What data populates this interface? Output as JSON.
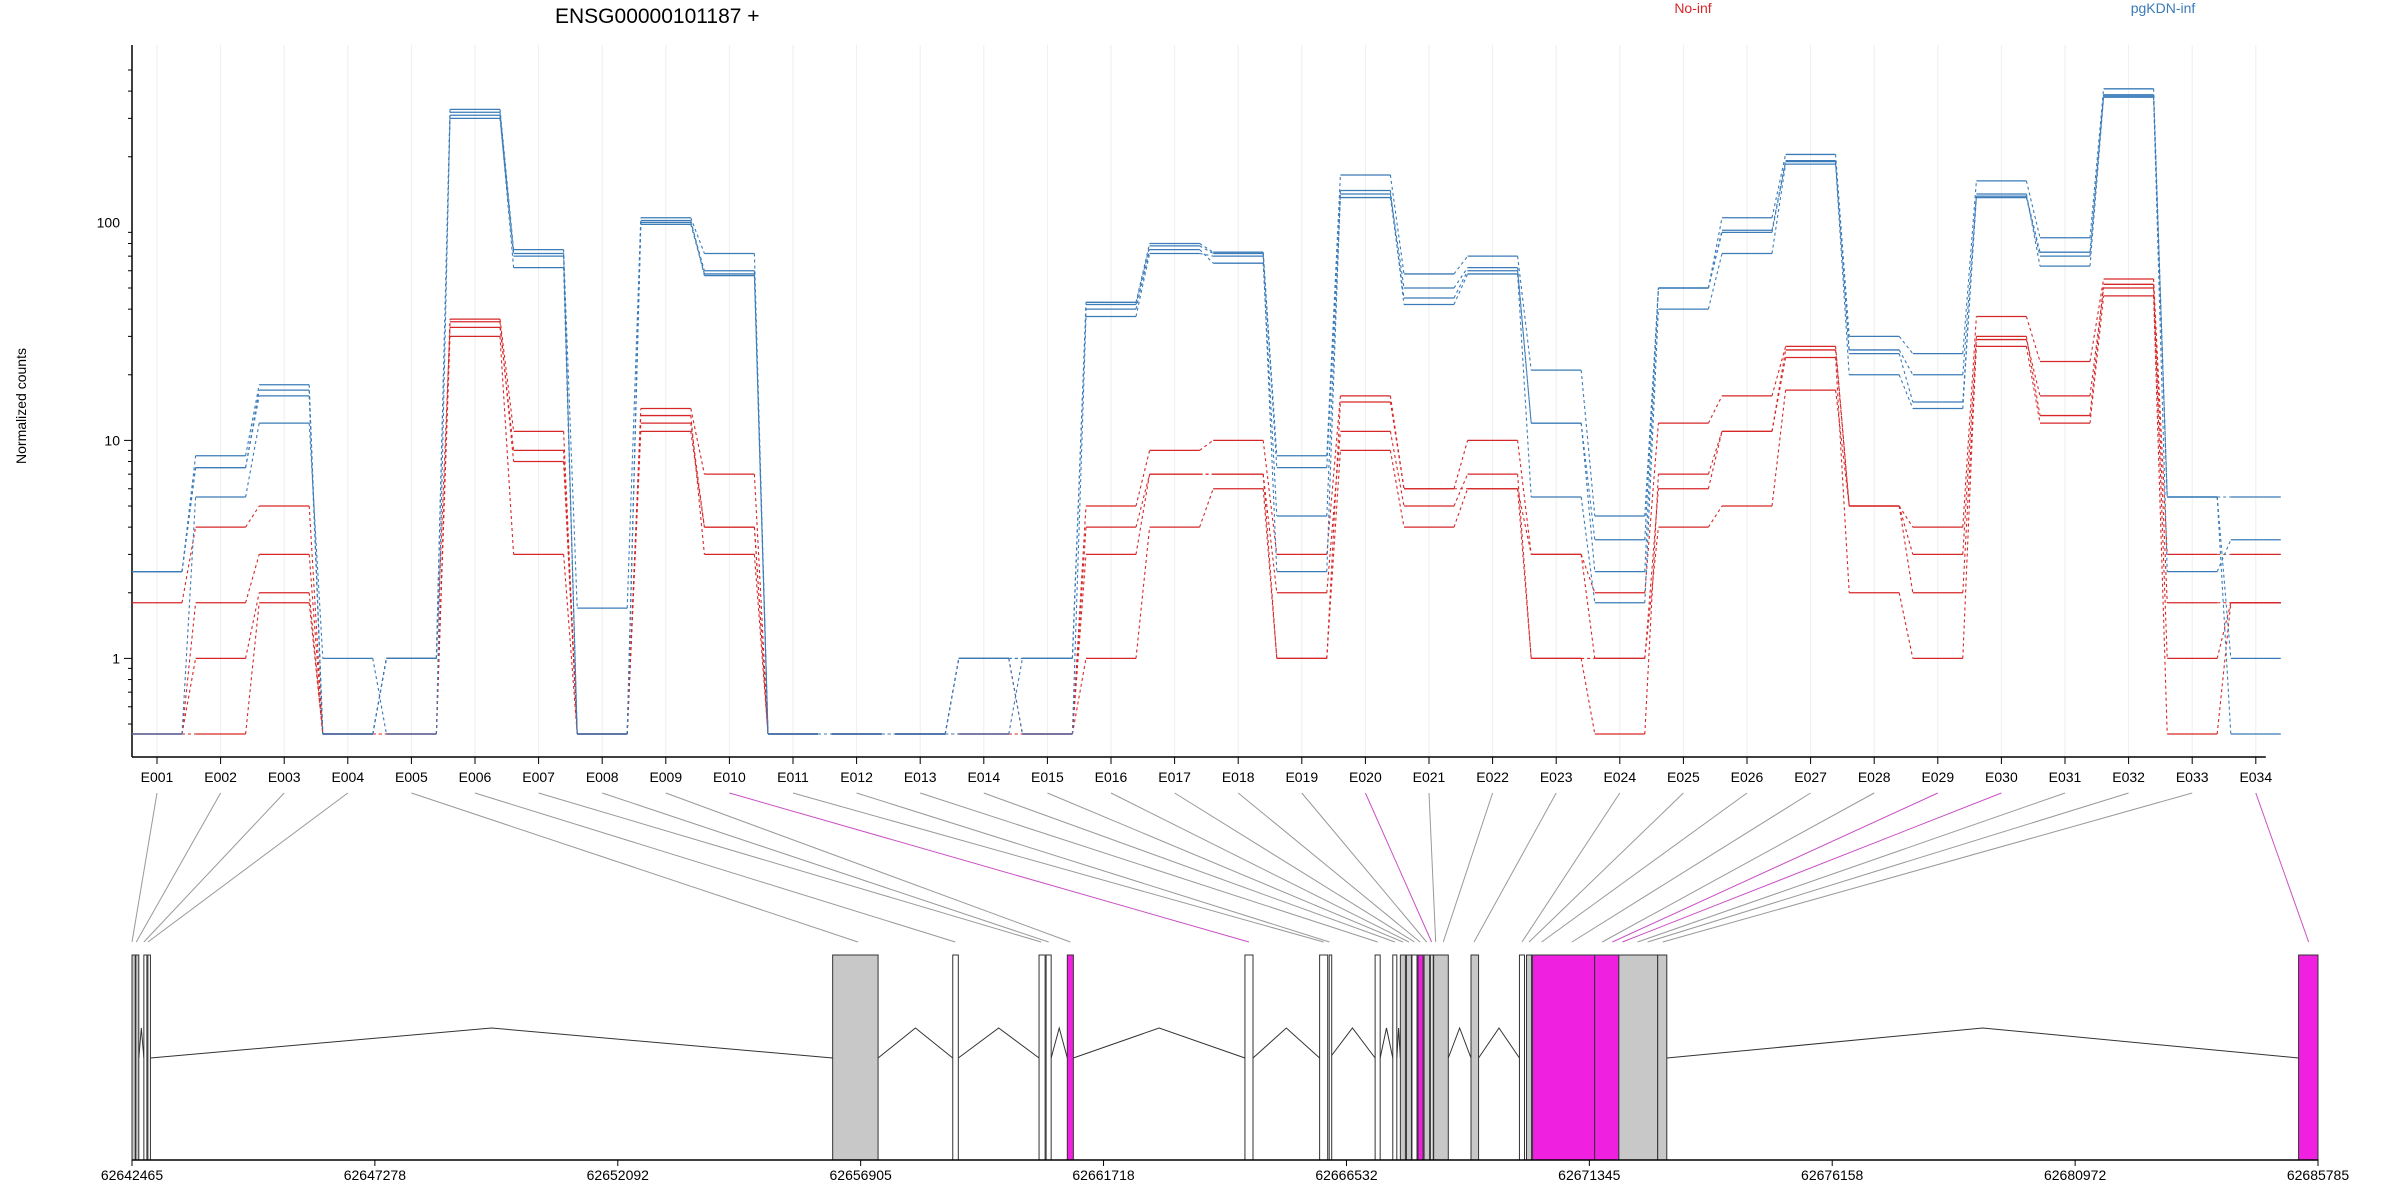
{
  "chart_data": {
    "type": "line",
    "title": "ENSG00000101187 +",
    "ylabel": "Normalized counts",
    "xlabel": "",
    "y_scale": "log",
    "yticks": [
      1,
      10,
      100
    ],
    "ytick_labels": [
      "1",
      "10",
      "100"
    ],
    "ylim": [
      0.45,
      500
    ],
    "grid": "vertical lines at exon bins",
    "legend_placement": "top",
    "legend": [
      {
        "label": "No-inf",
        "color": "#d62728"
      },
      {
        "label": "pgKDN-inf",
        "color": "#3a7bb8"
      }
    ],
    "categories": [
      "E001",
      "E002",
      "E003",
      "E004",
      "E005",
      "E006",
      "E007",
      "E008",
      "E009",
      "E010",
      "E011",
      "E012",
      "E013",
      "E014",
      "E015",
      "E016",
      "E017",
      "E018",
      "E019",
      "E020",
      "E021",
      "E022",
      "E023",
      "E024",
      "E025",
      "E026",
      "E027",
      "E028",
      "E029",
      "E030",
      "E031",
      "E032",
      "E033",
      "E034"
    ],
    "series": [
      {
        "group": "No-inf",
        "color": "#d62728",
        "values": [
          1.8,
          4,
          5,
          0.45,
          0.45,
          36,
          11,
          0.45,
          14,
          7,
          0.45,
          0.45,
          0.45,
          0.45,
          0.45,
          5,
          9,
          10,
          3,
          16,
          6,
          10,
          3,
          2,
          12,
          16,
          27,
          5,
          4,
          37,
          23,
          55,
          3,
          3
        ]
      },
      {
        "group": "No-inf",
        "color": "#d62728",
        "values": [
          0.45,
          1,
          2,
          0.45,
          1,
          33,
          9,
          0.45,
          12,
          4,
          0.45,
          0.45,
          0.45,
          1,
          0.45,
          4,
          7,
          7,
          2,
          11,
          5,
          7,
          1,
          0.45,
          7,
          11,
          24,
          2,
          1,
          29,
          16,
          50,
          1,
          1.8
        ]
      },
      {
        "group": "No-inf",
        "color": "#d62728",
        "values": [
          0.45,
          1.8,
          3,
          0.45,
          0.45,
          30,
          3,
          0.45,
          11,
          4,
          0.45,
          0.45,
          0.45,
          0.45,
          0.45,
          1,
          4,
          6,
          1,
          9,
          4,
          6,
          1,
          1,
          4,
          5,
          17,
          5,
          2,
          27,
          12,
          46,
          0.45,
          1.8
        ]
      },
      {
        "group": "No-inf",
        "color": "#d62728",
        "values": [
          0.45,
          0.45,
          1.8,
          0.45,
          0.45,
          35,
          8,
          0.45,
          13,
          3,
          0.45,
          0.45,
          0.45,
          0.45,
          0.45,
          3,
          7,
          7,
          1,
          15,
          6,
          6,
          3,
          1,
          6,
          11,
          26,
          5,
          3,
          30,
          13,
          52,
          1.8,
          1.8
        ]
      },
      {
        "group": "pgKDN-inf",
        "color": "#3a7bb8",
        "values": [
          2.5,
          8.5,
          18,
          0.45,
          1,
          330,
          75,
          1.7,
          105,
          72,
          0.45,
          0.45,
          0.45,
          1,
          1,
          43,
          80,
          73,
          8.5,
          165,
          58,
          70,
          21,
          4.5,
          50,
          105,
          205,
          30,
          25,
          155,
          85,
          410,
          5.5,
          5.5
        ]
      },
      {
        "group": "pgKDN-inf",
        "color": "#3a7bb8",
        "values": [
          2.5,
          7.5,
          16,
          0.45,
          1,
          300,
          70,
          0.45,
          100,
          60,
          0.45,
          0.45,
          0.45,
          0.45,
          1,
          40,
          75,
          65,
          4.5,
          130,
          45,
          60,
          12,
          3.5,
          50,
          90,
          190,
          25,
          15,
          130,
          70,
          380,
          2.5,
          3.5
        ]
      },
      {
        "group": "pgKDN-inf",
        "color": "#3a7bb8",
        "values": [
          0.45,
          5.5,
          12,
          1,
          0.45,
          310,
          62,
          0.45,
          98,
          58,
          0.45,
          0.45,
          0.45,
          1,
          0.45,
          37,
          72,
          70,
          2.5,
          140,
          42,
          58,
          5.5,
          1.8,
          40,
          72,
          185,
          20,
          14,
          135,
          63,
          375,
          5.5,
          1
        ]
      },
      {
        "group": "pgKDN-inf",
        "color": "#3a7bb8",
        "values": [
          2.5,
          7.5,
          17,
          0.45,
          1,
          320,
          72,
          0.45,
          102,
          57,
          0.45,
          0.45,
          0.45,
          1,
          1,
          42,
          78,
          72,
          7.5,
          135,
          50,
          62,
          12,
          2.5,
          50,
          92,
          192,
          26,
          20,
          132,
          73,
          385,
          5.5,
          0.45
        ]
      }
    ],
    "gene_model": {
      "coordinate_ticks": [
        "62642465",
        "62647278",
        "62652092",
        "62656905",
        "62661718",
        "62666532",
        "62671345",
        "62676158",
        "62680972",
        "62685785"
      ],
      "coordinate_tick_values": [
        62642465,
        62647278,
        62652092,
        62656905,
        62661718,
        62666532,
        62671345,
        62676158,
        62680972,
        62685785
      ],
      "range": [
        62642465,
        62685785
      ],
      "exons": [
        {
          "start": 62642465,
          "end": 62642530,
          "color": "#c8c8c8",
          "bin": "E001"
        },
        {
          "start": 62642540,
          "end": 62642600,
          "color": "#c8c8c8",
          "bin": "E002"
        },
        {
          "start": 62642700,
          "end": 62642760,
          "color": "#ffffff",
          "bin": "E003"
        },
        {
          "start": 62642780,
          "end": 62642830,
          "color": "#ffffff",
          "bin": "E004"
        },
        {
          "start": 62656350,
          "end": 62657250,
          "color": "#c8c8c8",
          "bin": "E005"
        },
        {
          "start": 62658730,
          "end": 62658840,
          "color": "#ffffff",
          "bin": "E006"
        },
        {
          "start": 62660440,
          "end": 62660560,
          "color": "#ffffff",
          "bin": "E007"
        },
        {
          "start": 62660580,
          "end": 62660680,
          "color": "#ffffff",
          "bin": "E008"
        },
        {
          "start": 62661000,
          "end": 62661120,
          "color": "#f020e0",
          "bin": "E009"
        },
        {
          "start": 62664520,
          "end": 62664680,
          "color": "#ffffff",
          "bin": "E010"
        },
        {
          "start": 62666000,
          "end": 62666160,
          "color": "#ffffff",
          "bin": "E011"
        },
        {
          "start": 62666190,
          "end": 62666200,
          "color": "#ffffff",
          "bin": "E012"
        },
        {
          "start": 62667100,
          "end": 62667200,
          "color": "#ffffff",
          "bin": "E013"
        },
        {
          "start": 62667450,
          "end": 62667530,
          "color": "#ffffff",
          "bin": "E014"
        },
        {
          "start": 62667600,
          "end": 62667700,
          "color": "#c8c8c8",
          "bin": "E015"
        },
        {
          "start": 62667720,
          "end": 62667820,
          "color": "#c8c8c8",
          "bin": "E016"
        },
        {
          "start": 62667830,
          "end": 62667930,
          "color": "#ffffff",
          "bin": "E017"
        },
        {
          "start": 62667950,
          "end": 62668050,
          "color": "#f020e0",
          "bin": "E018"
        },
        {
          "start": 62668070,
          "end": 62668180,
          "color": "#c8c8c8",
          "bin": "E019"
        },
        {
          "start": 62668200,
          "end": 62668250,
          "color": "#ffffff",
          "bin": "E020"
        },
        {
          "start": 62668260,
          "end": 62668550,
          "color": "#c8c8c8",
          "bin": "E021"
        },
        {
          "start": 62669000,
          "end": 62669150,
          "color": "#c8c8c8",
          "bin": "E022"
        },
        {
          "start": 62669960,
          "end": 62670060,
          "color": "#ffffff",
          "bin": "E023"
        },
        {
          "start": 62670100,
          "end": 62670200,
          "color": "#c8c8c8",
          "bin": "E024"
        },
        {
          "start": 62670220,
          "end": 62671450,
          "color": "#f020e0",
          "bin": "E025"
        },
        {
          "start": 62671450,
          "end": 62671930,
          "color": "#f020e0",
          "bin": "E026"
        },
        {
          "start": 62671930,
          "end": 62672700,
          "color": "#c8c8c8",
          "bin": "E027"
        },
        {
          "start": 62672700,
          "end": 62672880,
          "color": "#c8c8c8",
          "bin": "E028"
        },
        {
          "start": 62685400,
          "end": 62685785,
          "color": "#f020e0",
          "bin": "E034"
        }
      ],
      "exon_bin_targets": [
        62642465,
        62642550,
        62642700,
        62642780,
        62656850,
        62658780,
        62660480,
        62660630,
        62661060,
        62664600,
        62666080,
        62666195,
        62667150,
        62667490,
        62667650,
        62667770,
        62667880,
        62667990,
        62668120,
        62668220,
        62668300,
        62668450,
        62669060,
        62670010,
        62670150,
        62670400,
        62671000,
        62671600,
        62671800,
        62672000,
        62672300,
        62672500,
        62672800,
        62685600
      ],
      "link_colors": [
        "#999999",
        "#999999",
        "#999999",
        "#999999",
        "#999999",
        "#999999",
        "#999999",
        "#999999",
        "#999999",
        "#c94fc4",
        "#999999",
        "#999999",
        "#999999",
        "#999999",
        "#999999",
        "#999999",
        "#999999",
        "#999999",
        "#999999",
        "#c94fc4",
        "#999999",
        "#999999",
        "#999999",
        "#999999",
        "#999999",
        "#999999",
        "#999999",
        "#999999",
        "#c94fc4",
        "#c94fc4",
        "#999999",
        "#999999",
        "#999999",
        "#c94fc4"
      ]
    }
  }
}
